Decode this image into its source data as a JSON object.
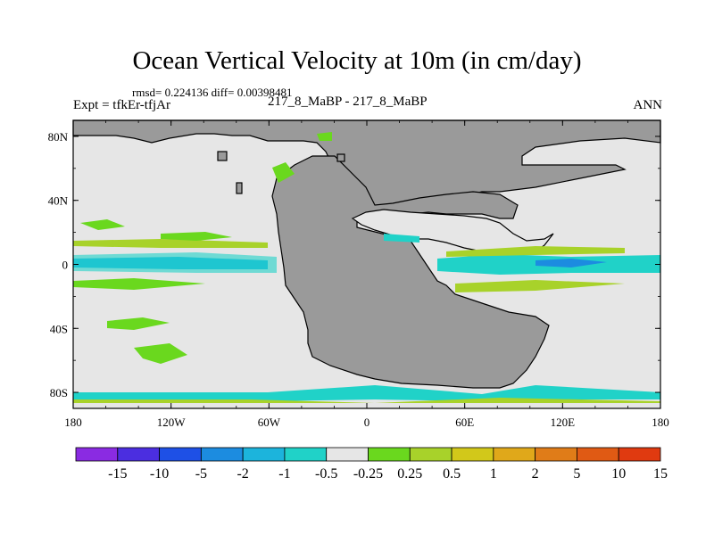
{
  "title": "Ocean Vertical Velocity at 10m (in cm/day)",
  "stats": "rmsd= 0.224136 diff= 0.00398481",
  "expt": "Expt = tfkEr-tfjAr",
  "subtitle": "217_8_MaBP - 217_8_MaBP",
  "season": "ANN",
  "map": {
    "lon_ticks": [
      "180",
      "120W",
      "60W",
      "0",
      "60E",
      "120E",
      "180"
    ],
    "lat_ticks": [
      "80N",
      "40N",
      "0",
      "40S",
      "80S"
    ],
    "colors": {
      "land": "#9a9a9a",
      "ocean_neutral": "#e6e6e6",
      "coastline": "#000000"
    }
  },
  "colorbar": {
    "colors": [
      "#8a2be2",
      "#4b2ee0",
      "#1e50e6",
      "#1c8ce0",
      "#1cb4dc",
      "#20d2c8",
      "#e6e6e6",
      "#6ad81e",
      "#a8d22a",
      "#d2c81a",
      "#e0a81a",
      "#e07c18",
      "#e05a14",
      "#e03a10"
    ],
    "labels": [
      "-15",
      "-10",
      "-5",
      "-2",
      "-1",
      "-0.5",
      "-0.25",
      "0.25",
      "0.5",
      "1",
      "2",
      "5",
      "10",
      "15"
    ]
  }
}
